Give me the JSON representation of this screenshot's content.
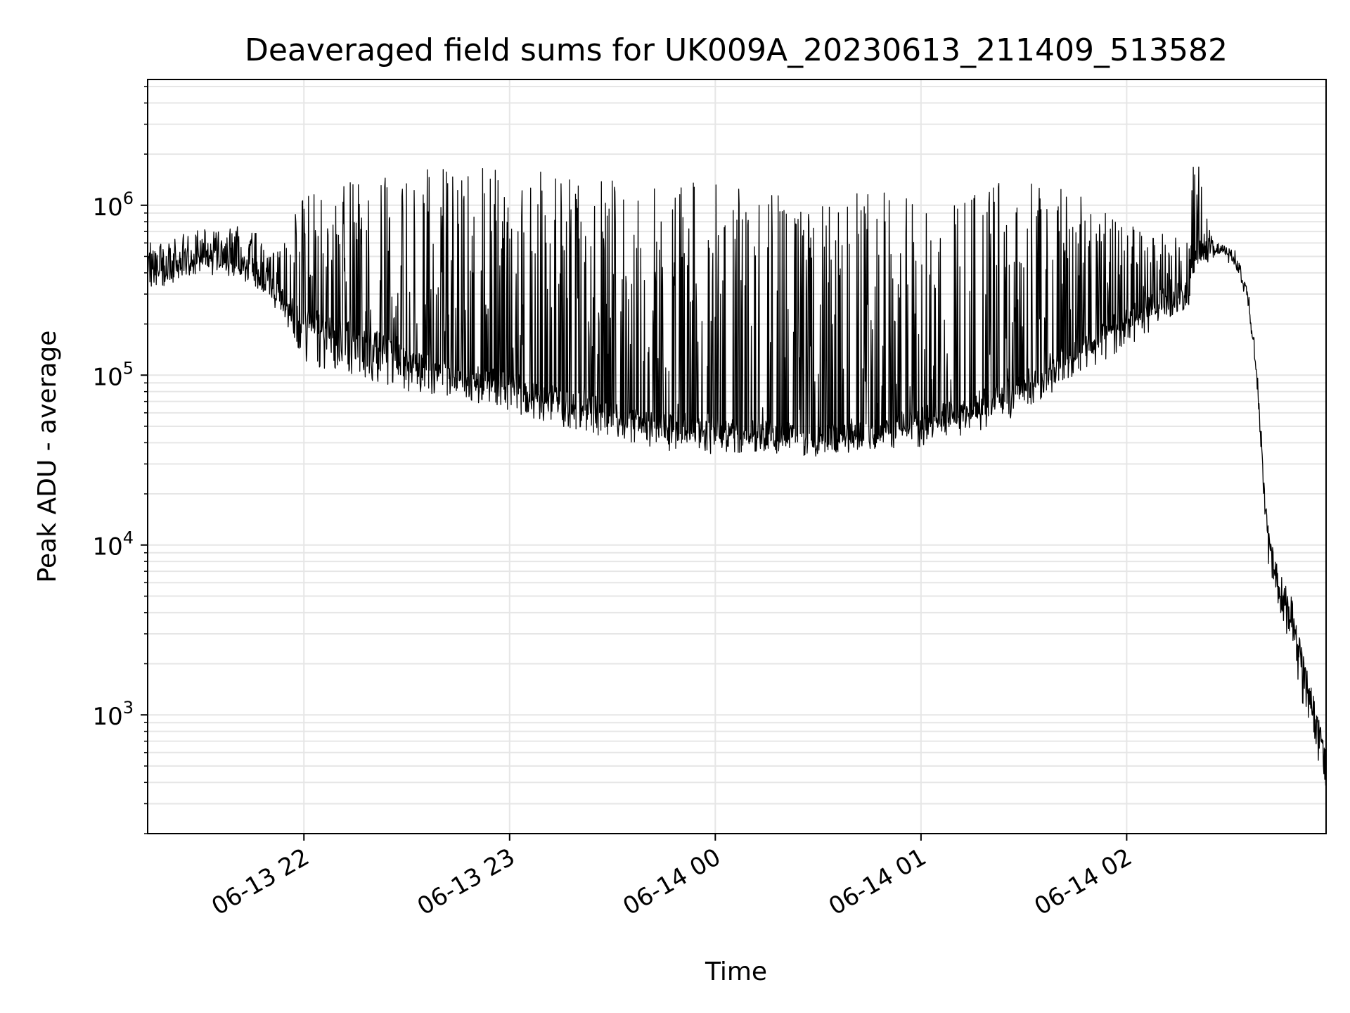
{
  "chart_data": {
    "type": "line",
    "title": "Deaveraged field sums for UK009A_20230613_211409_513582",
    "xlabel": "Time",
    "ylabel": "Peak ADU - average",
    "yscale": "log",
    "ylim": [
      200,
      5500000
    ],
    "xlim": [
      "2023-06-13T21:14:25",
      "2023-06-14T02:58:10"
    ],
    "grid": true,
    "line_color": "#000000",
    "grid_color": "#e6e6e6",
    "x_ticks": [
      {
        "value": "2023-06-13T22:00:00",
        "label": "06-13 22"
      },
      {
        "value": "2023-06-13T23:00:00",
        "label": "06-13 23"
      },
      {
        "value": "2023-06-14T00:00:00",
        "label": "06-14 00"
      },
      {
        "value": "2023-06-14T01:00:00",
        "label": "06-14 01"
      },
      {
        "value": "2023-06-14T02:00:00",
        "label": "06-14 02"
      }
    ],
    "y_ticks": [
      {
        "value": 1000,
        "base": "10",
        "exp": "3"
      },
      {
        "value": 10000,
        "base": "10",
        "exp": "4"
      },
      {
        "value": 100000,
        "base": "10",
        "exp": "5"
      },
      {
        "value": 1000000,
        "base": "10",
        "exp": "6"
      }
    ],
    "series": [
      {
        "x": [
          "2023-06-13T21:14:25",
          "2023-06-13T21:20:00",
          "2023-06-13T21:30:00",
          "2023-06-13T21:38:00",
          "2023-06-13T21:45:00",
          "2023-06-13T21:50:00",
          "2023-06-13T21:55:00",
          "2023-06-13T22:00:00",
          "2023-06-13T22:05:00",
          "2023-06-13T22:15:00",
          "2023-06-13T22:30:00",
          "2023-06-13T22:45:00",
          "2023-06-13T23:00:00",
          "2023-06-13T23:15:00",
          "2023-06-13T23:30:00",
          "2023-06-13T23:45:00",
          "2023-06-14T00:00:00",
          "2023-06-14T00:15:00",
          "2023-06-14T00:30:00",
          "2023-06-14T00:45:00",
          "2023-06-14T01:00:00",
          "2023-06-14T01:15:00",
          "2023-06-14T01:30:00",
          "2023-06-14T01:45:00",
          "2023-06-14T02:00:00",
          "2023-06-14T02:10:00",
          "2023-06-14T02:18:00",
          "2023-06-14T02:20:00",
          "2023-06-14T02:25:00",
          "2023-06-14T02:30:00",
          "2023-06-14T02:35:00",
          "2023-06-14T02:38:00",
          "2023-06-14T02:41:00",
          "2023-06-14T02:44:00",
          "2023-06-14T02:48:00",
          "2023-06-14T02:52:00",
          "2023-06-14T02:55:00",
          "2023-06-14T02:58:10"
        ],
        "base": [
          480000,
          420000,
          520000,
          500000,
          420000,
          330000,
          260000,
          220000,
          200000,
          180000,
          120000,
          100000,
          90000,
          70000,
          60000,
          50000,
          50000,
          46000,
          43000,
          45000,
          55000,
          65000,
          90000,
          140000,
          220000,
          280000,
          300000,
          500000,
          570000,
          540000,
          330000,
          100000,
          12000,
          6000,
          4000,
          1800,
          900,
          560
        ],
        "peak": [
          620000,
          650000,
          720000,
          760000,
          750000,
          500000,
          700000,
          1300000,
          1300000,
          1400000,
          1600000,
          1700000,
          1700000,
          1500000,
          1400000,
          1400000,
          1400000,
          1200000,
          1000000,
          1300000,
          1100000,
          1300000,
          1400000,
          1200000,
          800000,
          700000,
          600000,
          3200000,
          620000,
          560000,
          330000,
          100000,
          12000,
          8000,
          5000,
          2000,
          1200,
          600
        ],
        "trough": [
          330000,
          330000,
          380000,
          380000,
          340000,
          260000,
          200000,
          120000,
          110000,
          100000,
          80000,
          75000,
          60000,
          50000,
          42000,
          36000,
          34000,
          35000,
          33000,
          36000,
          38000,
          45000,
          60000,
          100000,
          140000,
          200000,
          250000,
          420000,
          530000,
          500000,
          300000,
          90000,
          8000,
          4500,
          2200,
          1000,
          600,
          330
        ]
      }
    ]
  }
}
